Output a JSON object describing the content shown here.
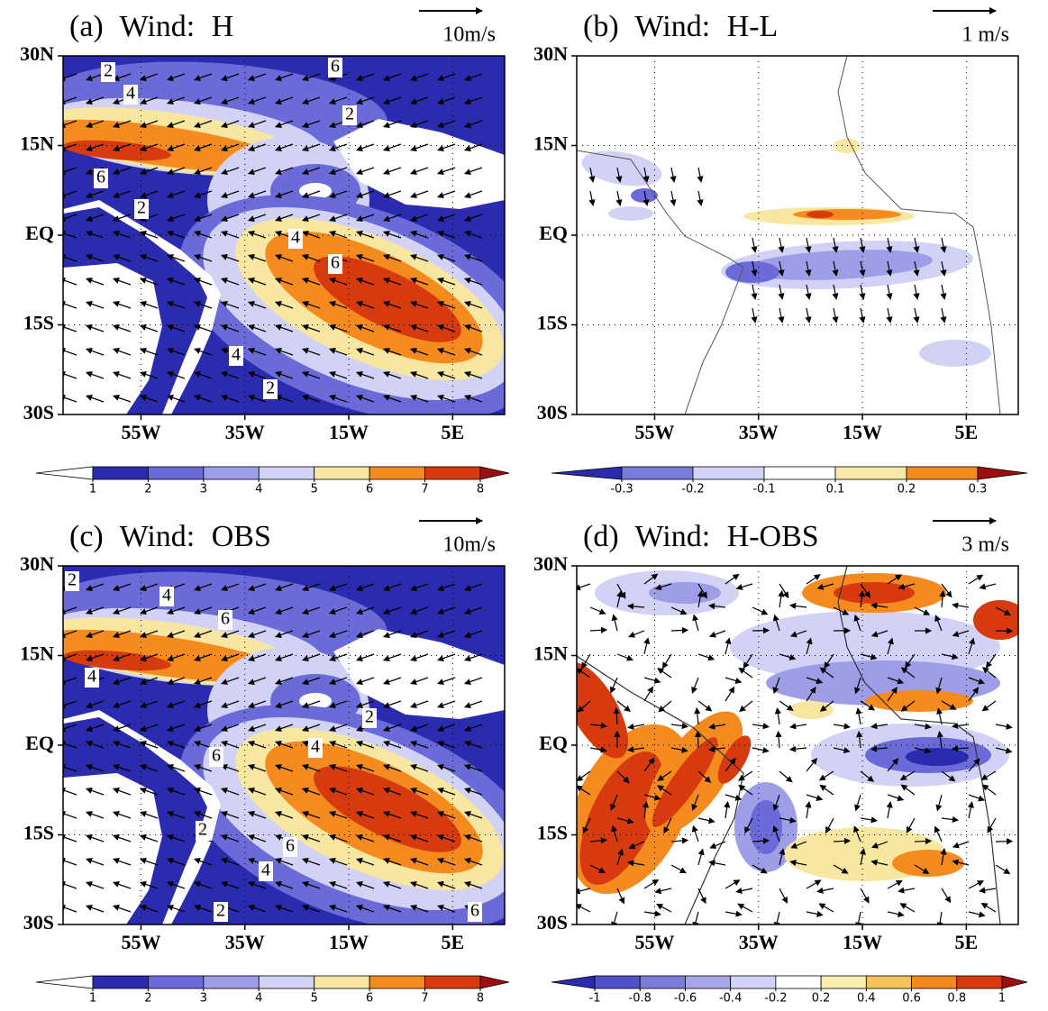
{
  "panels": [
    {
      "label": "(a) Wind: H",
      "ref_arrow": "10m/s",
      "xlim": [
        -70,
        15
      ],
      "ylim": [
        -30,
        30
      ],
      "xticks": [
        {
          "value": -55,
          "label": "55W"
        },
        {
          "value": -35,
          "label": "35W"
        },
        {
          "value": -15,
          "label": "15W"
        },
        {
          "value": 5,
          "label": "5E"
        }
      ],
      "yticks": [
        {
          "value": 30,
          "label": "30N"
        },
        {
          "value": 15,
          "label": "15N"
        },
        {
          "value": 0,
          "label": "EQ"
        },
        {
          "value": -15,
          "label": "15S"
        },
        {
          "value": -30,
          "label": "30S"
        }
      ],
      "contour_labels": [
        2,
        4,
        6,
        2,
        6,
        2,
        4,
        6,
        4,
        2
      ],
      "colorbar": {
        "ticks": [
          1,
          2,
          3,
          4,
          5,
          6,
          7,
          8
        ],
        "colors": [
          "#ffffff",
          "#2b2bb0",
          "#6a6ad8",
          "#9d9de8",
          "#d2d2f6",
          "#f7e7a0",
          "#f58a1e",
          "#d83a10",
          "#9e0e0e"
        ]
      }
    },
    {
      "label": "(b) Wind: H-L",
      "ref_arrow": "1 m/s",
      "xlim": [
        -70,
        15
      ],
      "ylim": [
        -30,
        30
      ],
      "xticks": [
        {
          "value": -55,
          "label": "55W"
        },
        {
          "value": -35,
          "label": "35W"
        },
        {
          "value": -15,
          "label": "15W"
        },
        {
          "value": 5,
          "label": "5E"
        }
      ],
      "yticks": [
        {
          "value": 30,
          "label": "30N"
        },
        {
          "value": 15,
          "label": "15N"
        },
        {
          "value": 0,
          "label": "EQ"
        },
        {
          "value": -15,
          "label": "15S"
        },
        {
          "value": -30,
          "label": "30S"
        }
      ],
      "colorbar": {
        "ticks": [
          -0.3,
          -0.2,
          -0.1,
          0.1,
          0.2,
          0.3
        ],
        "colors": [
          "#2b2bb0",
          "#7a7ad8",
          "#d2d2f6",
          "#ffffff",
          "#f7eaa8",
          "#f58a1e",
          "#9e0e0e"
        ]
      }
    },
    {
      "label": "(c) Wind: OBS",
      "ref_arrow": "10m/s",
      "xlim": [
        -70,
        15
      ],
      "ylim": [
        -30,
        30
      ],
      "xticks": [
        {
          "value": -55,
          "label": "55W"
        },
        {
          "value": -35,
          "label": "35W"
        },
        {
          "value": -15,
          "label": "15W"
        },
        {
          "value": 5,
          "label": "5E"
        }
      ],
      "yticks": [
        {
          "value": 30,
          "label": "30N"
        },
        {
          "value": 15,
          "label": "15N"
        },
        {
          "value": 0,
          "label": "EQ"
        },
        {
          "value": -15,
          "label": "15S"
        },
        {
          "value": -30,
          "label": "30S"
        }
      ],
      "contour_labels": [
        2,
        4,
        6,
        4,
        2,
        4,
        6,
        2,
        6,
        4,
        2,
        6
      ],
      "colorbar": {
        "ticks": [
          1,
          2,
          3,
          4,
          5,
          6,
          7,
          8
        ],
        "colors": [
          "#ffffff",
          "#2b2bb0",
          "#6a6ad8",
          "#9d9de8",
          "#d2d2f6",
          "#f7e7a0",
          "#f58a1e",
          "#d83a10",
          "#9e0e0e"
        ]
      }
    },
    {
      "label": "(d) Wind: H-OBS",
      "ref_arrow": "3 m/s",
      "xlim": [
        -70,
        15
      ],
      "ylim": [
        -30,
        30
      ],
      "xticks": [
        {
          "value": -55,
          "label": "55W"
        },
        {
          "value": -35,
          "label": "35W"
        },
        {
          "value": -15,
          "label": "15W"
        },
        {
          "value": 5,
          "label": "5E"
        }
      ],
      "yticks": [
        {
          "value": 30,
          "label": "30N"
        },
        {
          "value": 15,
          "label": "15N"
        },
        {
          "value": 0,
          "label": "EQ"
        },
        {
          "value": -15,
          "label": "15S"
        },
        {
          "value": -30,
          "label": "30S"
        }
      ],
      "colorbar": {
        "ticks": [
          -1,
          -0.8,
          -0.6,
          -0.4,
          -0.2,
          0.2,
          0.4,
          0.6,
          0.8,
          1
        ],
        "colors": [
          "#2b2bb0",
          "#5050c8",
          "#7a7ad8",
          "#a5a5e8",
          "#d2d2f6",
          "#ffffff",
          "#f9eeb0",
          "#f7c25a",
          "#f08a1e",
          "#d83a10",
          "#9e0e0e"
        ]
      }
    }
  ]
}
